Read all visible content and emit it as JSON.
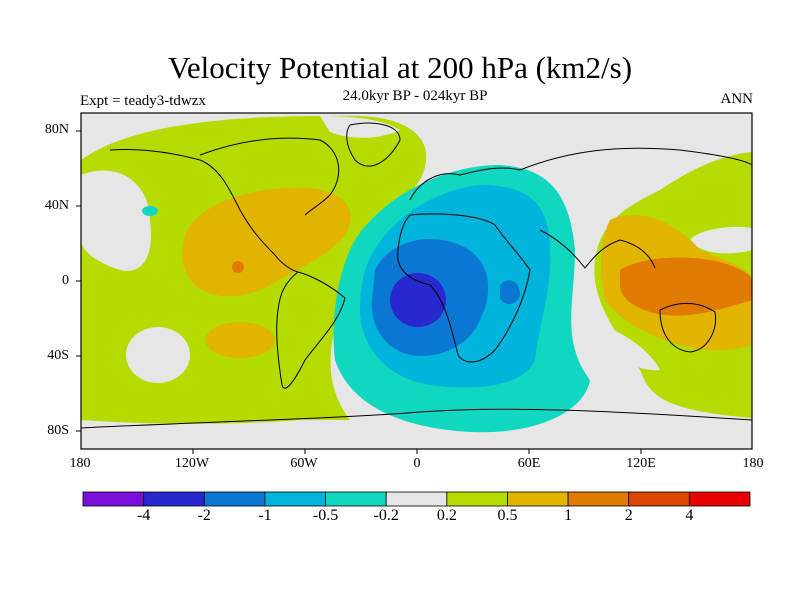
{
  "title": "Velocity Potential at 200 hPa (km2/s)",
  "subtitle": "24.0kyr BP - 024kyr BP",
  "left_label": "Expt = teady3-tdwzx",
  "right_label": "ANN",
  "lat_ticks": [
    "80N",
    "40N",
    "0",
    "40S",
    "80S"
  ],
  "lon_ticks": [
    "180",
    "120W",
    "60W",
    "0",
    "60E",
    "120E",
    "180"
  ],
  "colorbar": {
    "colors": [
      "#7a0fdc",
      "#2828d0",
      "#0a78d2",
      "#00b4dc",
      "#10d8c0",
      "#e6e6e6",
      "#b4dc00",
      "#e1b400",
      "#e07a00",
      "#dc4600",
      "#e60000"
    ],
    "labels": [
      "-4",
      "-2",
      "-1",
      "-0.5",
      "-0.2",
      "0.2",
      "0.5",
      "1",
      "2",
      "4"
    ]
  }
}
